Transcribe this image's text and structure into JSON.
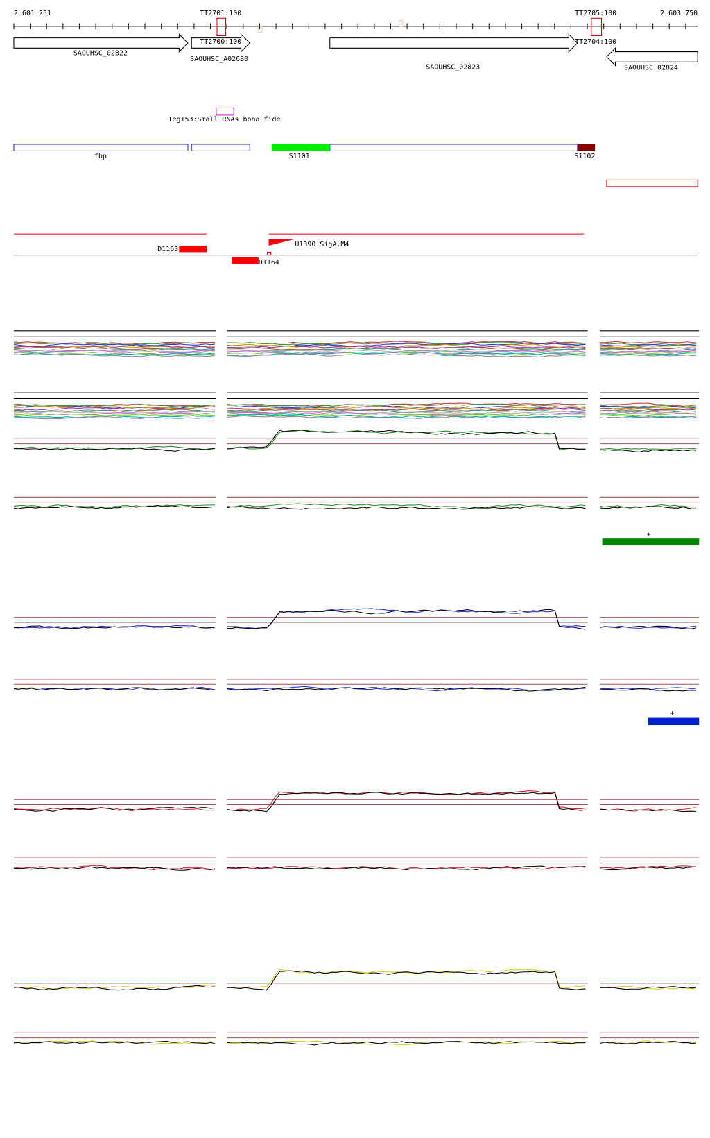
{
  "ruler": {
    "start": "2 601 251",
    "end": "2 603 750"
  },
  "terminators": [
    "TT2701:100",
    "TT2705:100",
    "TT2700:100",
    "TT2704:100"
  ],
  "genes": [
    "SAOUHSC_02822",
    "SAOUHSC_A02680",
    "SAOUHSC_02823",
    "SAOUHSC_02824"
  ],
  "srna": "Teg153:Small RNAs bona fide",
  "segments": [
    "fbp",
    "S1101",
    "S1102"
  ],
  "transcripts": [
    "D1163",
    "D1164"
  ],
  "promoter": "U1390.SigA.M4",
  "strand_marks": [
    "+",
    "+"
  ]
}
